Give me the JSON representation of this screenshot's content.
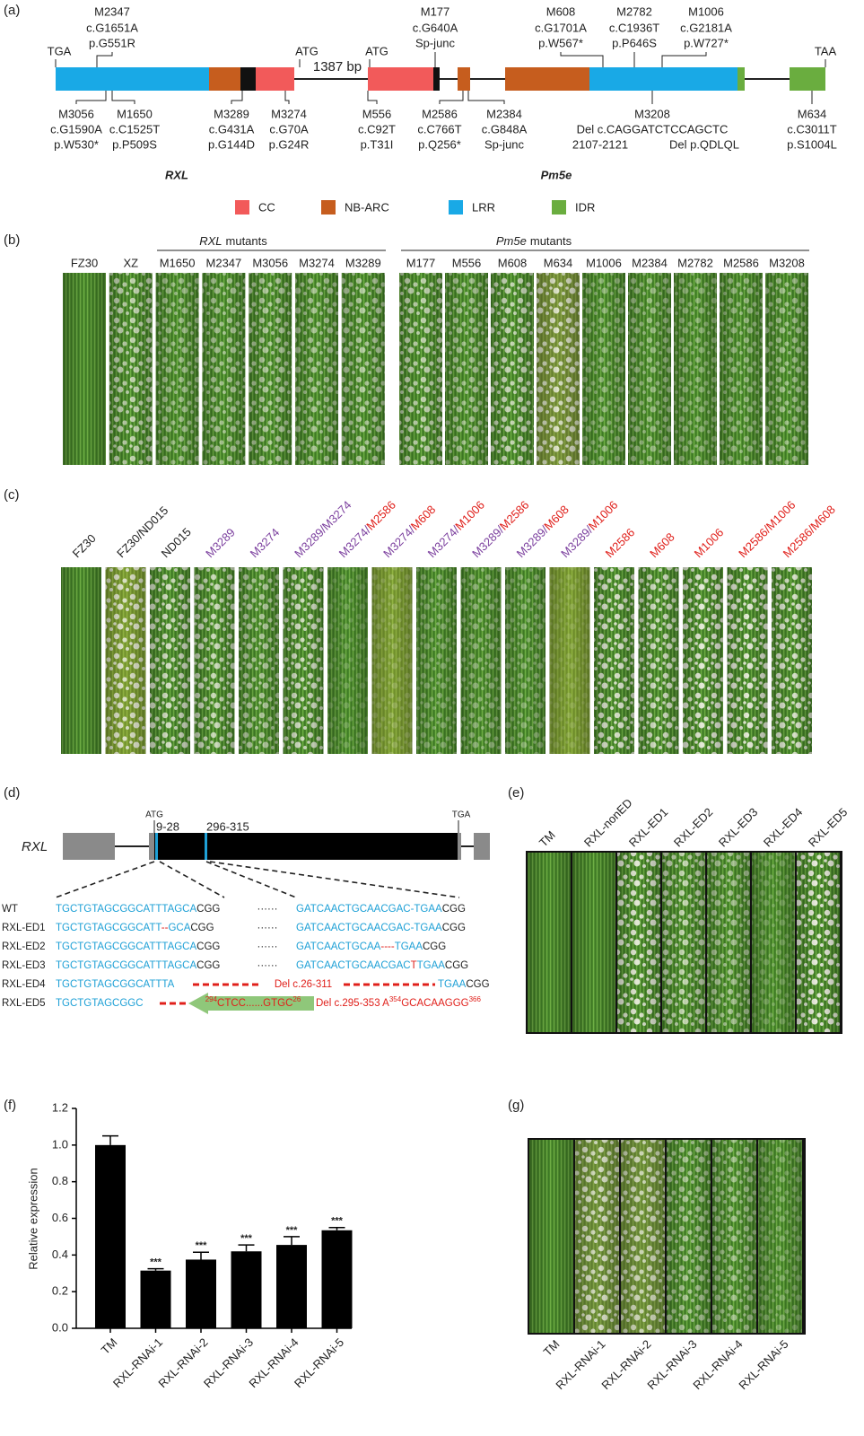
{
  "colors": {
    "wt": "#222222",
    "rxl": "#7b3f9e",
    "pm5e": "#e0201b",
    "seq": "#1ea0d6"
  },
  "panel_a": {
    "label": "(a)",
    "gene_labels": {
      "rxl": "RXL",
      "pm5e": "Pm5e"
    },
    "codons": [
      "TGA",
      "ATG",
      "ATG",
      "TAA"
    ],
    "intergenic": "1387 bp",
    "mutations_above": [
      {
        "id": "M2347",
        "group": "rxl",
        "lines": [
          "c.G1651A",
          "p.G551R"
        ]
      },
      {
        "id": "M177",
        "group": "pm5e",
        "lines": [
          "c.G640A",
          "Sp-junc"
        ]
      },
      {
        "id": "M608",
        "group": "pm5e",
        "lines": [
          "c.G1701A",
          "p.W567*"
        ]
      },
      {
        "id": "M2782",
        "group": "pm5e",
        "lines": [
          "c.C1936T",
          "p.P646S"
        ]
      },
      {
        "id": "M1006",
        "group": "pm5e",
        "lines": [
          "c.G2181A",
          "p.W727*"
        ]
      }
    ],
    "mutations_below": [
      {
        "id": "M3056",
        "group": "rxl",
        "lines": [
          "c.G1590A",
          "p.W530*"
        ]
      },
      {
        "id": "M1650",
        "group": "rxl",
        "lines": [
          "c.C1525T",
          "p.P509S"
        ]
      },
      {
        "id": "M3289",
        "group": "rxl",
        "lines": [
          "c.G431A",
          "p.G144D"
        ]
      },
      {
        "id": "M3274",
        "group": "rxl",
        "lines": [
          "c.G70A",
          "p.G24R"
        ]
      },
      {
        "id": "M556",
        "group": "pm5e",
        "lines": [
          "c.C92T",
          "p.T31I"
        ]
      },
      {
        "id": "M2586",
        "group": "pm5e",
        "lines": [
          "c.C766T",
          "p.Q256*"
        ]
      },
      {
        "id": "M2384",
        "group": "pm5e",
        "lines": [
          "c.G848A",
          "Sp-junc"
        ]
      },
      {
        "id": "M3208",
        "group": "pm5e",
        "lines": [
          "Del c.CAGGATCTCCAGCTC",
          [
            "2107-2121",
            "Del p.QDLQL"
          ]
        ]
      },
      {
        "id": "M634",
        "group": "pm5e",
        "lines": [
          "c.C3011T",
          "p.S1004L"
        ]
      }
    ],
    "legend": [
      {
        "name": "CC",
        "color": "#f25a5a"
      },
      {
        "name": "NB-ARC",
        "color": "#c65d1e"
      },
      {
        "name": "LRR",
        "color": "#19a9e6"
      },
      {
        "name": "IDR",
        "color": "#6aad3f"
      }
    ]
  },
  "panel_b": {
    "label": "(b)",
    "group_titles": [
      {
        "gene": "RXL",
        "word": "mutants"
      },
      {
        "gene": "Pm5e",
        "word": "mutants"
      }
    ],
    "controls": [
      "FZ30",
      "XZ"
    ],
    "rxl_mutants": [
      "M1650",
      "M2347",
      "M3056",
      "M3274",
      "M3289"
    ],
    "pm5e_mutants": [
      "M177",
      "M556",
      "M608",
      "M634",
      "M1006",
      "M2384",
      "M2782",
      "M2586",
      "M3208"
    ]
  },
  "panel_c": {
    "label": "(c)",
    "labels": [
      {
        "wt": "FZ30"
      },
      {
        "wt": "FZ30/ND015"
      },
      {
        "wt": "ND015"
      },
      {
        "rxl": "M3289"
      },
      {
        "rxl": "M3274"
      },
      {
        "rxl": "M3289/M3274"
      },
      {
        "rxl": "M3274/",
        "pm5e": "M2586"
      },
      {
        "rxl": "M3274/",
        "pm5e": "M608"
      },
      {
        "rxl": "M3274/",
        "pm5e": "M1006"
      },
      {
        "rxl": "M3289/",
        "pm5e": "M2586"
      },
      {
        "rxl": "M3289/",
        "pm5e": "M608"
      },
      {
        "rxl": "M3289/",
        "pm5e": "M1006"
      },
      {
        "pm5e": "M2586"
      },
      {
        "pm5e": "M608"
      },
      {
        "pm5e": "M1006"
      },
      {
        "pm5e": "M2586/M1006"
      },
      {
        "pm5e": "M2586/M608"
      }
    ]
  },
  "panel_d": {
    "label": "(d)",
    "gene": "RXL",
    "start_codon": "ATG",
    "stop_codon": "TGA",
    "targets": [
      "9-28",
      "296-315"
    ],
    "rows": [
      {
        "name": "WT",
        "left": [
          {
            "t": "TGCTGTAGCGGCATTTAGCA",
            "c": "seq"
          },
          {
            "t": "CGG",
            "c": "wt"
          }
        ],
        "mid": [
          {
            "t": "······",
            "c": "wt"
          }
        ],
        "right": [
          {
            "t": "GATCAACTGCAACGAC-TGAA",
            "c": "seq"
          },
          {
            "t": "CGG",
            "c": "wt"
          }
        ]
      },
      {
        "name": "RXL-ED1",
        "left": [
          {
            "t": "TGCTGTAGCGGCATT",
            "c": "seq"
          },
          {
            "t": "--",
            "c": "pm5e"
          },
          {
            "t": "GCA",
            "c": "seq"
          },
          {
            "t": "CGG",
            "c": "wt"
          }
        ],
        "mid": [
          {
            "t": "······",
            "c": "wt"
          }
        ],
        "right": [
          {
            "t": "GATCAACTGCAACGAC-TGAA",
            "c": "seq"
          },
          {
            "t": "CGG",
            "c": "wt"
          }
        ]
      },
      {
        "name": "RXL-ED2",
        "left": [
          {
            "t": "TGCTGTAGCGGCATTTAGCA",
            "c": "seq"
          },
          {
            "t": "CGG",
            "c": "wt"
          }
        ],
        "mid": [
          {
            "t": "······",
            "c": "wt"
          }
        ],
        "right": [
          {
            "t": "GATCAACTGCAA",
            "c": "seq"
          },
          {
            "t": "----",
            "c": "pm5e"
          },
          {
            "t": "TGAA",
            "c": "seq"
          },
          {
            "t": "CGG",
            "c": "wt"
          }
        ]
      },
      {
        "name": "RXL-ED3",
        "left": [
          {
            "t": "TGCTGTAGCGGCATTTAGCA",
            "c": "seq"
          },
          {
            "t": "CGG",
            "c": "wt"
          }
        ],
        "mid": [
          {
            "t": "······",
            "c": "wt"
          }
        ],
        "right": [
          {
            "t": "GATCAACTGCAACGAC",
            "c": "seq"
          },
          {
            "t": "T",
            "c": "pm5e"
          },
          {
            "t": "TGAA",
            "c": "seq"
          },
          {
            "t": "CGG",
            "c": "wt"
          }
        ]
      },
      {
        "name": "RXL-ED4",
        "left": [
          {
            "t": "TGCTGTAGCGGCATTTA",
            "c": "seq"
          }
        ],
        "mid": [
          {
            "t": "Del c.26-311",
            "c": "pm5e"
          }
        ],
        "right": [
          {
            "t": "TGAA",
            "c": "seq"
          },
          {
            "t": "CGG",
            "c": "wt"
          }
        ]
      },
      {
        "name": "RXL-ED5",
        "left": [
          {
            "t": "TGCTGTAGCGGC",
            "c": "seq"
          }
        ],
        "mid": [
          {
            "t": "294",
            "c": "pm5e",
            "sup": true
          },
          {
            "t": "CTCC......GTGC",
            "c": "pm5e"
          },
          {
            "t": "26",
            "c": "pm5e",
            "sup": true
          }
        ],
        "right": [
          {
            "t": "Del c.295-353 A",
            "c": "pm5e"
          },
          {
            "t": "354",
            "c": "pm5e",
            "sup": true
          },
          {
            "t": "GCACAAGGG",
            "c": "pm5e"
          },
          {
            "t": "366",
            "c": "pm5e",
            "sup": true
          }
        ]
      }
    ]
  },
  "panel_e": {
    "label": "(e)",
    "labels": [
      "TM",
      "RXL-nonED",
      "RXL-ED1",
      "RXL-ED2",
      "RXL-ED3",
      "RXL-ED4",
      "RXL-ED5"
    ]
  },
  "chart_data": {
    "type": "bar",
    "panel_label": "(f)",
    "y_label": "Relative expression",
    "categories": [
      "TM",
      "RXL-RNAi-1",
      "RXL-RNAi-2",
      "RXL-RNAi-3",
      "RXL-RNAi-4",
      "RXL-RNAi-5"
    ],
    "values": [
      1.0,
      0.315,
      0.375,
      0.42,
      0.455,
      0.535
    ],
    "errors": [
      0.05,
      0.01,
      0.04,
      0.035,
      0.045,
      0.015
    ],
    "annotations": [
      null,
      "***",
      "***",
      "***",
      "***",
      "***"
    ],
    "color": "#000000",
    "ylim": [
      0,
      1.2
    ],
    "yticks": [
      {
        "value": 0,
        "label": "0.0"
      },
      0.2,
      0.4,
      0.6,
      0.8,
      {
        "value": 1,
        "label": "1.0"
      },
      1.2
    ]
  },
  "panel_g": {
    "label": "(g)",
    "labels": [
      "TM",
      "RXL-RNAi-1",
      "RXL-RNAi-2",
      "RXL-RNAi-3",
      "RXL-RNAi-4",
      "RXL-RNAi-5"
    ]
  }
}
